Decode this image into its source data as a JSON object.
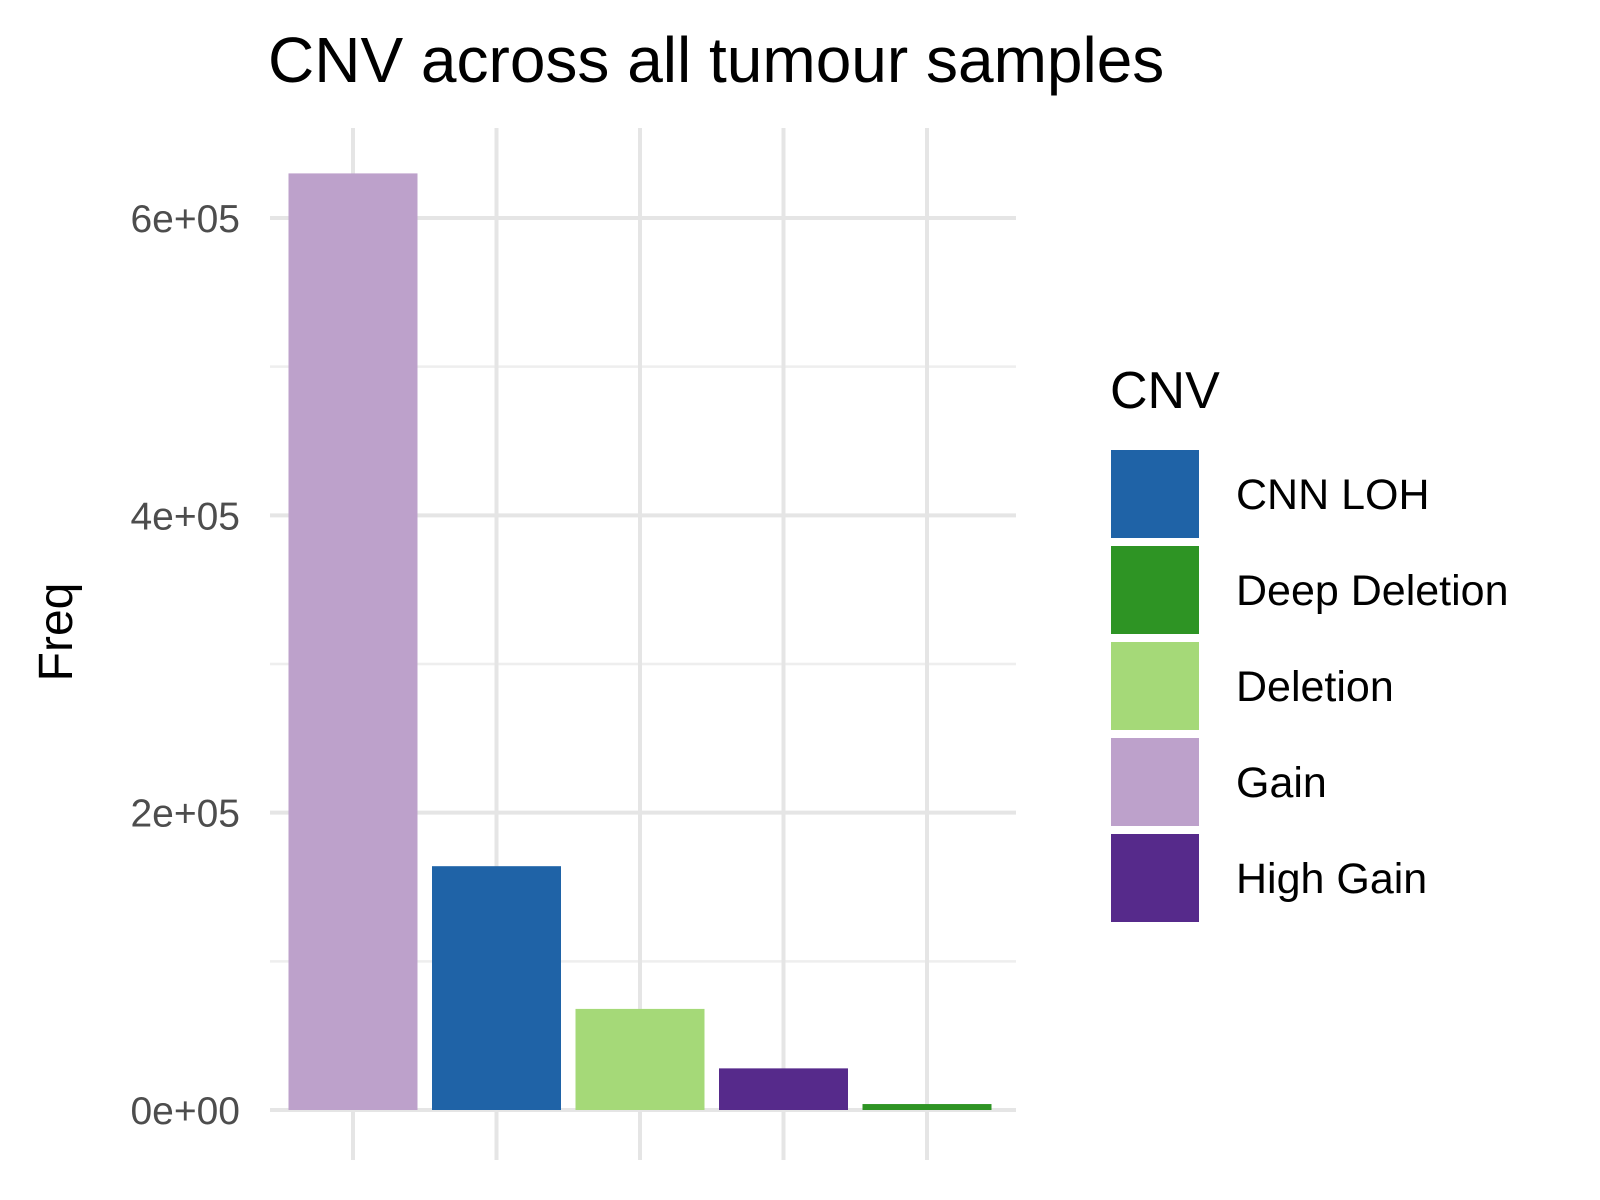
{
  "chart_data": {
    "type": "bar",
    "title": "CNV across all tumour samples",
    "xlabel": "",
    "ylabel": "Freq",
    "categories": [
      "Gain",
      "CNN LOH",
      "Deletion",
      "High Gain",
      "Deep Deletion"
    ],
    "values": [
      630000,
      164000,
      68000,
      28000,
      4000
    ],
    "colors": [
      "#bda1cb",
      "#1f63a7",
      "#a5d978",
      "#562a8b",
      "#2e9424"
    ],
    "ylim": [
      0,
      650000
    ],
    "yticks": [
      0,
      200000,
      400000,
      600000
    ],
    "ytick_labels": [
      "0e+00",
      "2e+05",
      "4e+05",
      "6e+05"
    ],
    "grid": true,
    "legend": {
      "title": "CNV",
      "placement": "right",
      "items": [
        {
          "label": "CNN LOH",
          "color": "#1f63a7"
        },
        {
          "label": "Deep Deletion",
          "color": "#2e9424"
        },
        {
          "label": "Deletion",
          "color": "#a5d978"
        },
        {
          "label": "Gain",
          "color": "#bda1cb"
        },
        {
          "label": "High Gain",
          "color": "#562a8b"
        }
      ]
    }
  }
}
